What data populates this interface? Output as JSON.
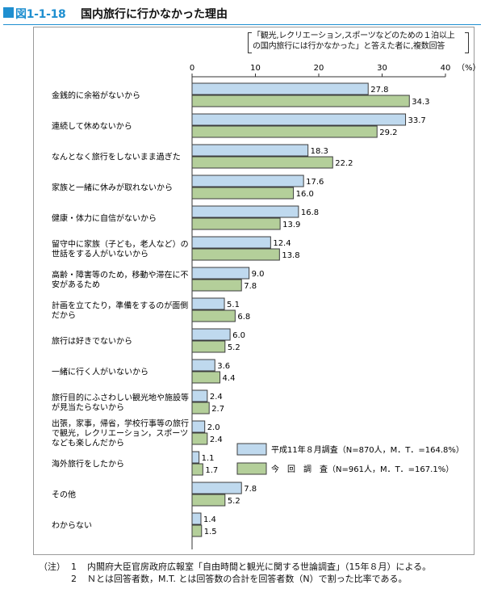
{
  "header": {
    "fig_label": "図1-1-18",
    "title": "国内旅行に行かなかった理由"
  },
  "note": {
    "line1": "「観光,レクリエーション,スポーツなどのための１泊以上",
    "line2": "の国内旅行には行かなかった」と答えた者に,複数回答"
  },
  "colors": {
    "series_1999": "#bfd9ee",
    "series_now": "#b4cf9a",
    "outline": "#3d3d3d",
    "accent": "#1f8fd0"
  },
  "chart_data": {
    "type": "bar",
    "orientation": "horizontal",
    "x_unit": "（%）",
    "xlim": [
      0,
      40
    ],
    "xticks": [
      0,
      10,
      20,
      30,
      40
    ],
    "categories": [
      [
        "金銭的に余裕がないから"
      ],
      [
        "連続して休めないから"
      ],
      [
        "なんとなく旅行をしないまま過ぎた"
      ],
      [
        "家族と一緒に休みが取れないから"
      ],
      [
        "健康・体力に自信がないから"
      ],
      [
        "留守中に家族（子ども，老人など）の",
        "世話をする人がいないから"
      ],
      [
        "高齢・障害等のため，移動や滞在に不",
        "安があるため"
      ],
      [
        "計画を立てたり，準備をするのが面倒",
        "だから"
      ],
      [
        "旅行は好きでないから"
      ],
      [
        "一緒に行く人がいないから"
      ],
      [
        "旅行目的にふさわしい観光地や施設等",
        "が見当たらないから"
      ],
      [
        "出張，家事，帰省，学校行事等の旅行",
        "で観光，レクリエーション，スポーツ",
        "なども楽しんだから"
      ],
      [
        "海外旅行をしたから"
      ],
      [
        "その他"
      ],
      [
        "わからない"
      ]
    ],
    "series": [
      {
        "name": "平成11年８月調査（N=870人，M．T．=164.8%）",
        "values": [
          27.8,
          33.7,
          18.3,
          17.6,
          16.8,
          12.4,
          9.0,
          5.1,
          6.0,
          3.6,
          2.4,
          2.0,
          1.1,
          7.8,
          1.4
        ],
        "labels": [
          "27.8",
          "33.7",
          "18.3",
          "17.6",
          "16.8",
          "12.4",
          "9.0",
          "5.1",
          "6.0",
          "3.6",
          "2.4",
          "2.0",
          "1.1",
          "7.8",
          "1.4"
        ]
      },
      {
        "name": "今　回　調　査（N=961人，M．T．=167.1%）",
        "values": [
          34.3,
          29.2,
          22.2,
          16.0,
          13.9,
          13.8,
          7.8,
          6.8,
          5.2,
          4.4,
          2.7,
          2.4,
          1.7,
          5.2,
          1.5
        ],
        "labels": [
          "34.3",
          "29.2",
          "22.2",
          "16.0",
          "13.9",
          "13.8",
          "7.8",
          "6.8",
          "5.2",
          "4.4",
          "2.7",
          "2.4",
          "1.7",
          "5.2",
          "1.5"
        ]
      }
    ],
    "legend_position": "lower-right"
  },
  "footnotes": {
    "prefix": "（注）",
    "items": [
      {
        "num": "1",
        "text": "内閣府大臣官房政府広報室「自由時間と観光に関する世論調査」（15年８月）による。"
      },
      {
        "num": "2",
        "text": "Ｎとは回答者数，M.T. とは回答数の合計を回答者数（N）で割った比率である。"
      }
    ]
  }
}
